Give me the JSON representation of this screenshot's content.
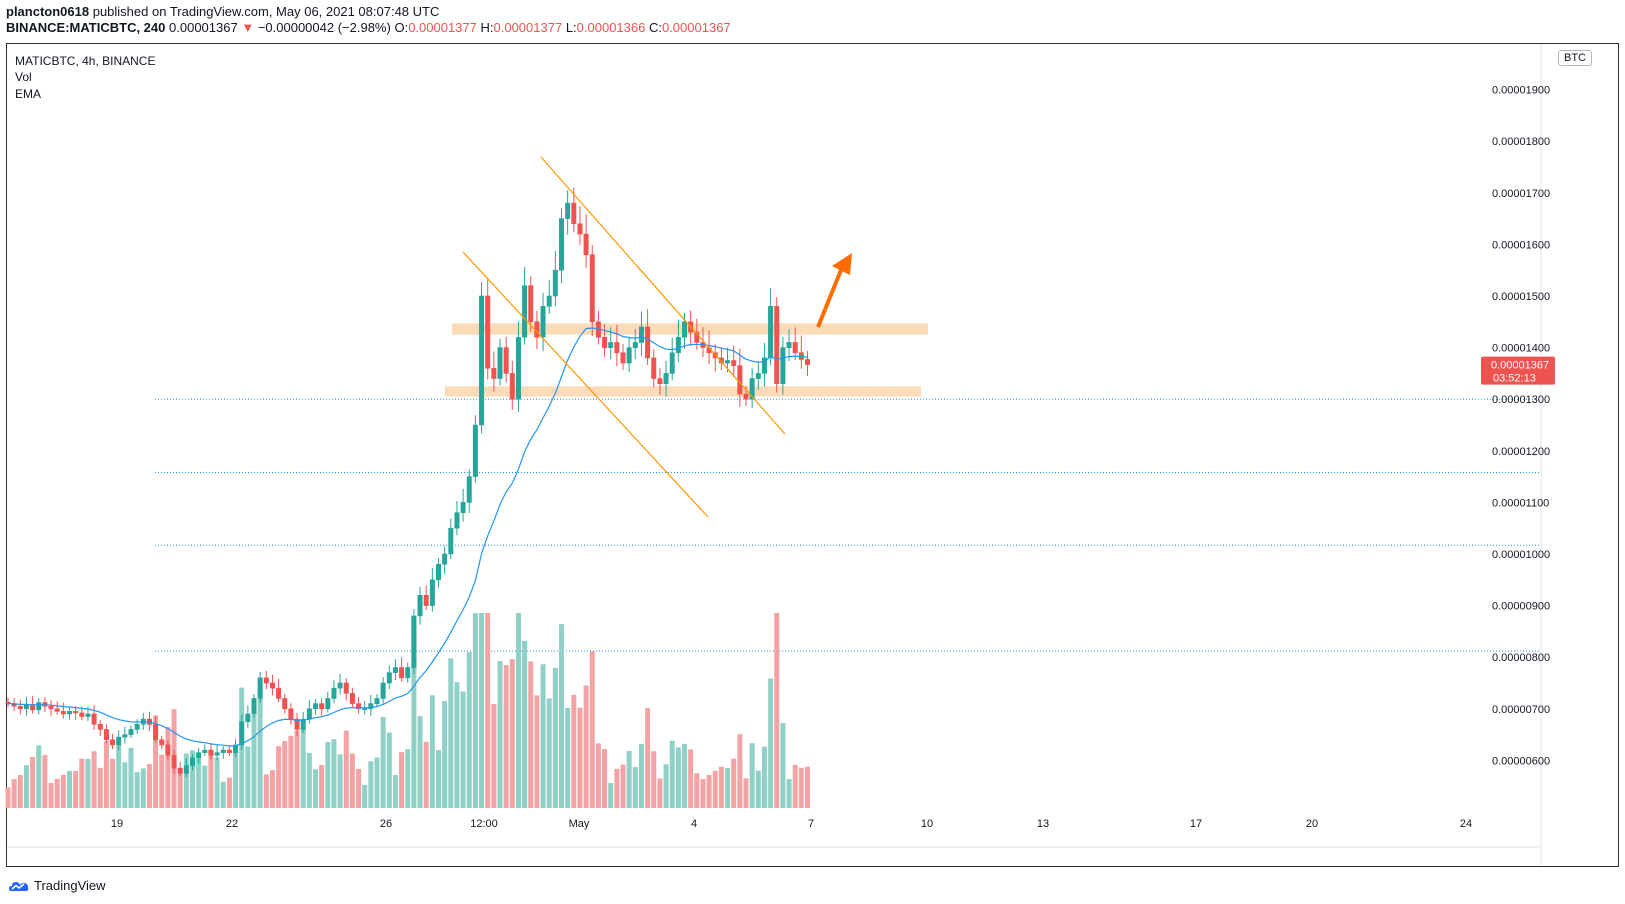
{
  "header": {
    "author": "plancton0618",
    "published": "published on TradingView.com, May 06, 2021 08:07:48 UTC",
    "symbol_line": "BINANCE:MATICBTC, 240",
    "last": "0.00001367",
    "change_arrow": "▼",
    "change": "−0.00000042 (−2.98%)",
    "o_label": "O:",
    "o": "0.00001377",
    "h_label": "H:",
    "h": "0.00001377",
    "l_label": "L:",
    "l": "0.00001366",
    "c_label": "C:",
    "c": "0.00001367"
  },
  "legend": {
    "title": "MATICBTC, 4h, BINANCE",
    "vol": "Vol",
    "ema": "EMA"
  },
  "price_axis": {
    "currency": "BTC",
    "badge_price": "0.00001367",
    "badge_timer": "03:52:13"
  },
  "footer": {
    "brand": "TradingView"
  },
  "colors": {
    "up": "#26a69a",
    "down": "#ef5350",
    "up_vol": "#8fd0c7",
    "down_vol": "#f4a3a4",
    "ema": "#2196f3",
    "channel": "#ff9800",
    "zone": "#fbd5ad",
    "arrow": "#ff6d00",
    "hline": "#2196f3"
  },
  "chart_data": {
    "type": "candlestick",
    "title": "MATICBTC, 4h, BINANCE",
    "y_range": [
      5e-06,
      2e-05
    ],
    "y_ticks": [
      "0.00001900",
      "0.00001800",
      "0.00001700",
      "0.00001600",
      "0.00001500",
      "0.00001400",
      "0.00001300",
      "0.00001200",
      "0.00001100",
      "0.00001000",
      "0.00000900",
      "0.00000800",
      "0.00000700",
      "0.00000600"
    ],
    "x_ticks": [
      "19",
      "22",
      "26",
      "12:00",
      "May",
      "4",
      "7",
      "10",
      "13",
      "17",
      "20",
      "24"
    ],
    "horizontal_levels": [
      1.3e-05,
      1.158e-05,
      1.017e-05,
      8.12e-06
    ],
    "zones": [
      {
        "low": 1.425e-05,
        "high": 1.447e-05
      },
      {
        "low": 1.305e-05,
        "high": 1.325e-05
      }
    ],
    "closes": [
      7.1e-06,
      7.05e-06,
      7e-06,
      7.08e-06,
      6.98e-06,
      7.12e-06,
      7.05e-06,
      7e-06,
      6.95e-06,
      6.9e-06,
      6.95e-06,
      6.92e-06,
      6.85e-06,
      6.9e-06,
      6.7e-06,
      6.6e-06,
      6.4e-06,
      6.3e-06,
      6.45e-06,
      6.5e-06,
      6.6e-06,
      6.7e-06,
      6.8e-06,
      6.7e-06,
      6.4e-06,
      6.3e-06,
      6.1e-06,
      5.85e-06,
      5.75e-06,
      5.9e-06,
      6.05e-06,
      6.15e-06,
      6.2e-06,
      6.1e-06,
      6.15e-06,
      6.2e-06,
      6.15e-06,
      6.3e-06,
      6.75e-06,
      6.9e-06,
      7.2e-06,
      7.6e-06,
      7.5e-06,
      7.4e-06,
      7.2e-06,
      7e-06,
      6.8e-06,
      6.6e-06,
      6.8e-06,
      7e-06,
      7.1e-06,
      7e-06,
      7.2e-06,
      7.4e-06,
      7.5e-06,
      7.3e-06,
      7.1e-06,
      7e-06,
      7e-06,
      7.1e-06,
      7.2e-06,
      7.5e-06,
      7.7e-06,
      7.8e-06,
      7.6e-06,
      7.8e-06,
      8.8e-06,
      9.2e-06,
      9e-06,
      9.5e-06,
      9.8e-06,
      1e-05,
      1.05e-05,
      1.08e-05,
      1.1e-05,
      1.15e-05,
      1.25e-05,
      1.5e-05,
      1.36e-05,
      1.34e-05,
      1.4e-05,
      1.35e-05,
      1.3e-05,
      1.42e-05,
      1.52e-05,
      1.45e-05,
      1.42e-05,
      1.48e-05,
      1.5e-05,
      1.55e-05,
      1.65e-05,
      1.68e-05,
      1.64e-05,
      1.62e-05,
      1.58e-05,
      1.45e-05,
      1.42e-05,
      1.4e-05,
      1.41e-05,
      1.39e-05,
      1.37e-05,
      1.4e-05,
      1.41e-05,
      1.44e-05,
      1.38e-05,
      1.34e-05,
      1.33e-05,
      1.35e-05,
      1.39e-05,
      1.42e-05,
      1.45e-05,
      1.43e-05,
      1.41e-05,
      1.4e-05,
      1.39e-05,
      1.38e-05,
      1.37e-05,
      1.375e-05,
      1.365e-05,
      1.31e-05,
      1.3e-05,
      1.34e-05,
      1.35e-05,
      1.38e-05,
      1.48e-05,
      1.33e-05,
      1.4e-05,
      1.41e-05,
      1.39e-05,
      1.377e-05,
      1.367e-05
    ]
  }
}
